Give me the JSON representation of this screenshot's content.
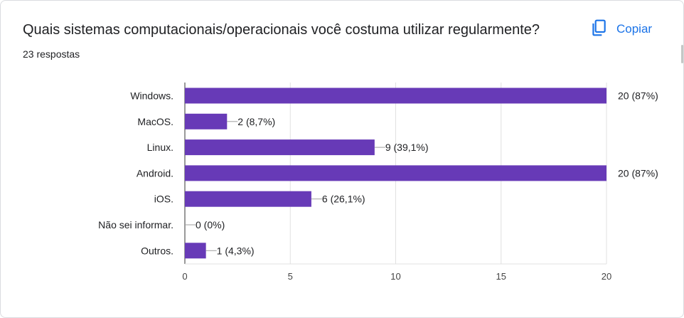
{
  "question": {
    "title": "Quais sistemas computacionais/operacionais você costuma utilizar regularmente?",
    "responses": "23 respostas",
    "copy_label": "Copiar"
  },
  "icons": {
    "copy": "copy-icon"
  },
  "colors": {
    "bar": "#673ab7",
    "accent": "#1a73e8"
  },
  "chart_data": {
    "type": "bar",
    "orientation": "horizontal",
    "categories": [
      "Windows.",
      "MacOS.",
      "Linux.",
      "Android.",
      "iOS.",
      "Não sei informar.",
      "Outros."
    ],
    "values": [
      20,
      2,
      9,
      20,
      6,
      0,
      1
    ],
    "value_labels": [
      "20 (87%)",
      "2 (8,7%)",
      "9 (39,1%)",
      "20 (87%)",
      "6 (26,1%)",
      "0 (0%)",
      "1 (4,3%)"
    ],
    "xticks": [
      "0",
      "5",
      "10",
      "15",
      "20"
    ],
    "xlim": [
      0,
      20
    ],
    "grid": true
  }
}
